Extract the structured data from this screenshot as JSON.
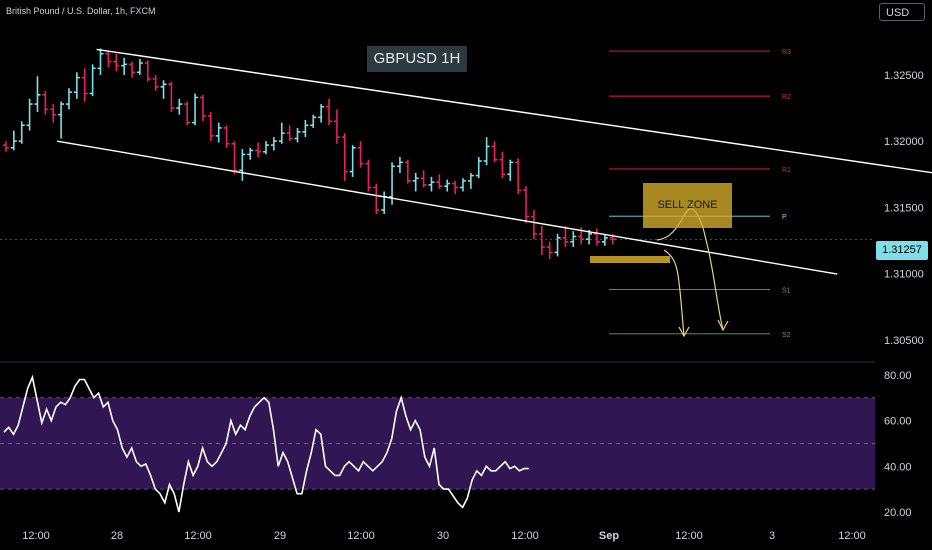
{
  "header": {
    "symbol": "British Pound / U.S. Dollar, 1h, FXCM",
    "currency": "USD"
  },
  "annotations": {
    "title": "GBPUSD 1H",
    "sell_zone": "SELL ZONE"
  },
  "price_badge": "1.31257",
  "colors": {
    "background": "#000000",
    "up_candle": "#80deea",
    "down_candle": "#e91e63",
    "channel": "#ffffff",
    "rsi_line": "#ffffff",
    "rsi_band": "#3a1a63",
    "sell_zone": "#d6ae2a",
    "resistance_pivot": "#e91e63",
    "support_pivot": "#4caf50"
  },
  "chart_data": [
    {
      "type": "candlestick",
      "x_labels": [
        "12:00",
        "28",
        "12:00",
        "29",
        "12:00",
        "30",
        "12:00",
        "Sep",
        "12:00",
        "3",
        "12:00"
      ],
      "y_ticks": [
        "1.32500",
        "1.32000",
        "1.31500",
        "1.31000",
        "1.30500"
      ],
      "y_range": [
        1.3037,
        1.3293
      ],
      "candles": [
        [
          1.3197,
          1.32,
          1.3192,
          1.3195
        ],
        [
          1.3195,
          1.3208,
          1.3193,
          1.32
        ],
        [
          1.32,
          1.3215,
          1.3198,
          1.3212
        ],
        [
          1.3212,
          1.3232,
          1.3208,
          1.3228
        ],
        [
          1.3228,
          1.3249,
          1.3222,
          1.3235
        ],
        [
          1.3235,
          1.3238,
          1.322,
          1.3224
        ],
        [
          1.3224,
          1.3228,
          1.3214,
          1.322
        ],
        [
          1.322,
          1.323,
          1.3202,
          1.3228
        ],
        [
          1.3228,
          1.324,
          1.3224,
          1.3237
        ],
        [
          1.3237,
          1.3252,
          1.3232,
          1.3248
        ],
        [
          1.3248,
          1.3255,
          1.323,
          1.3236
        ],
        [
          1.3236,
          1.3258,
          1.3234,
          1.3255
        ],
        [
          1.3255,
          1.327,
          1.325,
          1.3266
        ],
        [
          1.3266,
          1.3268,
          1.3256,
          1.326
        ],
        [
          1.326,
          1.3266,
          1.3253,
          1.3257
        ],
        [
          1.3257,
          1.3263,
          1.325,
          1.3258
        ],
        [
          1.3258,
          1.326,
          1.3248,
          1.3252
        ],
        [
          1.3252,
          1.3262,
          1.325,
          1.3259
        ],
        [
          1.3259,
          1.3261,
          1.3245,
          1.3247
        ],
        [
          1.3247,
          1.325,
          1.3238,
          1.3241
        ],
        [
          1.3241,
          1.3246,
          1.3232,
          1.3243
        ],
        [
          1.3243,
          1.3245,
          1.3222,
          1.3225
        ],
        [
          1.3225,
          1.3232,
          1.322,
          1.3228
        ],
        [
          1.3228,
          1.323,
          1.3212,
          1.3214
        ],
        [
          1.3214,
          1.3236,
          1.3212,
          1.3233
        ],
        [
          1.3233,
          1.3235,
          1.3215,
          1.3219
        ],
        [
          1.3219,
          1.3222,
          1.32,
          1.3204
        ],
        [
          1.3204,
          1.3214,
          1.3199,
          1.321
        ],
        [
          1.321,
          1.3212,
          1.3195,
          1.3198
        ],
        [
          1.3198,
          1.32,
          1.3175,
          1.3178
        ],
        [
          1.3178,
          1.3194,
          1.317,
          1.319
        ],
        [
          1.319,
          1.3195,
          1.3186,
          1.3193
        ],
        [
          1.3193,
          1.3199,
          1.3188,
          1.3192
        ],
        [
          1.3192,
          1.32,
          1.319,
          1.3197
        ],
        [
          1.3197,
          1.3203,
          1.3193,
          1.32
        ],
        [
          1.32,
          1.3214,
          1.3198,
          1.3206
        ],
        [
          1.3206,
          1.3212,
          1.32,
          1.3202
        ],
        [
          1.3202,
          1.321,
          1.3199,
          1.3207
        ],
        [
          1.3207,
          1.3216,
          1.3203,
          1.3212
        ],
        [
          1.3212,
          1.322,
          1.321,
          1.3218
        ],
        [
          1.3218,
          1.3228,
          1.3214,
          1.3226
        ],
        [
          1.3226,
          1.3232,
          1.3212,
          1.3215
        ],
        [
          1.3215,
          1.3224,
          1.3198,
          1.3203
        ],
        [
          1.3203,
          1.3206,
          1.317,
          1.3177
        ],
        [
          1.3177,
          1.3197,
          1.3173,
          1.3195
        ],
        [
          1.3195,
          1.32,
          1.318,
          1.3183
        ],
        [
          1.3183,
          1.3186,
          1.3162,
          1.3165
        ],
        [
          1.3165,
          1.3168,
          1.3145,
          1.3148
        ],
        [
          1.3148,
          1.3162,
          1.3145,
          1.3158
        ],
        [
          1.3158,
          1.3184,
          1.3152,
          1.3181
        ],
        [
          1.3181,
          1.3188,
          1.3176,
          1.3184
        ],
        [
          1.3184,
          1.3186,
          1.3168,
          1.317
        ],
        [
          1.317,
          1.3176,
          1.3162,
          1.3172
        ],
        [
          1.3172,
          1.3178,
          1.3165,
          1.3167
        ],
        [
          1.3167,
          1.3173,
          1.3162,
          1.3169
        ],
        [
          1.3169,
          1.3175,
          1.3164,
          1.3166
        ],
        [
          1.3166,
          1.3171,
          1.3162,
          1.3168
        ],
        [
          1.3168,
          1.317,
          1.316,
          1.3165
        ],
        [
          1.3165,
          1.3172,
          1.3162,
          1.317
        ],
        [
          1.317,
          1.3176,
          1.3164,
          1.3174
        ],
        [
          1.3174,
          1.3188,
          1.3172,
          1.3185
        ],
        [
          1.3185,
          1.3203,
          1.3182,
          1.3196
        ],
        [
          1.3196,
          1.32,
          1.3184,
          1.3186
        ],
        [
          1.3186,
          1.3192,
          1.3172,
          1.3175
        ],
        [
          1.3175,
          1.3186,
          1.317,
          1.3184
        ],
        [
          1.3184,
          1.3187,
          1.316,
          1.3163
        ],
        [
          1.3163,
          1.3166,
          1.3138,
          1.3143
        ],
        [
          1.3143,
          1.3148,
          1.3126,
          1.313
        ],
        [
          1.313,
          1.3136,
          1.3114,
          1.312
        ],
        [
          1.312,
          1.3124,
          1.3111,
          1.3116
        ],
        [
          1.3116,
          1.313,
          1.3113,
          1.3127
        ],
        [
          1.3127,
          1.3136,
          1.312,
          1.3124
        ],
        [
          1.3124,
          1.3132,
          1.312,
          1.3128
        ],
        [
          1.3128,
          1.3135,
          1.3122,
          1.3126
        ],
        [
          1.3126,
          1.3133,
          1.3122,
          1.313
        ],
        [
          1.313,
          1.3134,
          1.3121,
          1.3124
        ],
        [
          1.3124,
          1.3129,
          1.3121,
          1.3127
        ],
        [
          1.3127,
          1.313,
          1.3122,
          1.3126
        ]
      ],
      "pivot_levels": [
        {
          "name": "R3",
          "value": 1.3268
        },
        {
          "name": "R2",
          "value": 1.3234
        },
        {
          "name": "R1",
          "value": 1.3179
        },
        {
          "name": "P",
          "value": 1.31433
        },
        {
          "name": "S1",
          "value": 1.3088
        },
        {
          "name": "S2",
          "value": 1.30545
        }
      ],
      "channel": {
        "upper": [
          {
            "x": "Aug 27 20:00",
            "y": 1.32693
          },
          {
            "x": "Sep 2 05:00",
            "y": 1.3156
          }
        ],
        "lower": [
          {
            "x": "Aug 27 15:00",
            "y": 1.32
          },
          {
            "x": "Aug 31 18:00",
            "y": 1.30996
          }
        ]
      },
      "sell_zone": {
        "x_start": "Aug 31 15:00",
        "x_end": "Sep 1 04:00",
        "y_min": 1.31433,
        "y_max": 1.3175
      },
      "last_price": 1.31257,
      "grid": false
    },
    {
      "type": "line",
      "name": "RSI",
      "y_ticks": [
        "80.00",
        "60.00",
        "40.00",
        "20.00"
      ],
      "y_range": [
        15.6,
        83.9
      ],
      "band": [
        30,
        70
      ],
      "values": [
        55,
        57,
        54,
        58,
        66,
        74,
        79,
        69,
        59,
        65,
        60,
        66,
        68,
        67,
        70,
        75,
        78,
        78,
        74,
        70,
        72,
        66,
        68,
        60,
        56,
        48,
        44,
        48,
        42,
        40,
        41,
        36,
        30,
        28,
        24,
        32,
        28,
        20,
        32,
        42,
        36,
        40,
        48,
        42,
        40,
        42,
        46,
        50,
        60,
        54,
        58,
        56,
        62,
        66,
        68,
        70,
        68,
        56,
        40,
        46,
        42,
        35,
        28,
        28,
        38,
        46,
        56,
        54,
        40,
        38,
        36,
        36,
        40,
        42,
        40,
        38,
        42,
        40,
        38,
        40,
        42,
        46,
        52,
        64,
        70,
        62,
        56,
        60,
        56,
        44,
        40,
        48,
        32,
        30,
        30,
        27,
        24,
        22,
        26,
        34,
        38,
        36,
        40,
        38,
        38,
        40,
        42,
        39,
        40,
        38,
        39,
        39
      ]
    }
  ]
}
